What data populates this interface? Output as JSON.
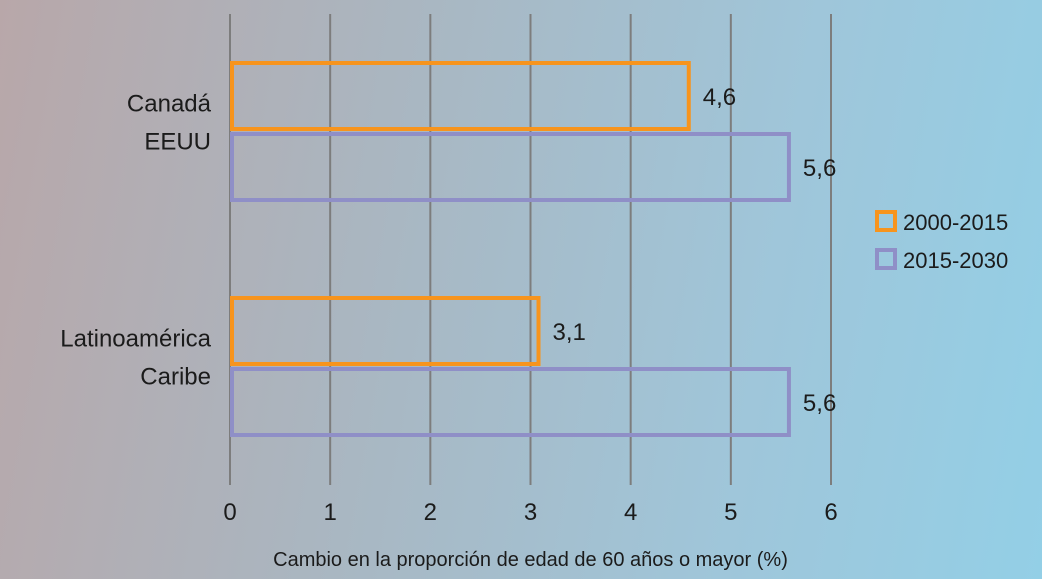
{
  "chart_data": {
    "type": "bar",
    "orientation": "horizontal",
    "title": "",
    "xlabel": "Cambio en la proporción de edad de 60 años o mayor (%)",
    "ylabel": "",
    "xlim": [
      0,
      6
    ],
    "x_ticks": [
      0,
      1,
      2,
      3,
      4,
      5,
      6
    ],
    "x_tick_labels": [
      "0",
      "1",
      "2",
      "3",
      "4",
      "5",
      "6"
    ],
    "grid": true,
    "legend": {
      "placement": "right",
      "entries": [
        "2000-2015",
        "2015-2030"
      ]
    },
    "categories": [
      {
        "lines": [
          "Canadá",
          "EEUU"
        ]
      },
      {
        "lines": [
          "Latinoamérica",
          "Caribe"
        ]
      }
    ],
    "series": [
      {
        "name": "2000-2015",
        "color": "#f7941d",
        "values": [
          4.6,
          3.1
        ],
        "value_labels": [
          "4,6",
          "3,1"
        ]
      },
      {
        "name": "2015-2030",
        "color": "#8f8fc7",
        "values": [
          5.6,
          5.6
        ],
        "value_labels": [
          "5,6",
          "5,6"
        ]
      }
    ]
  }
}
